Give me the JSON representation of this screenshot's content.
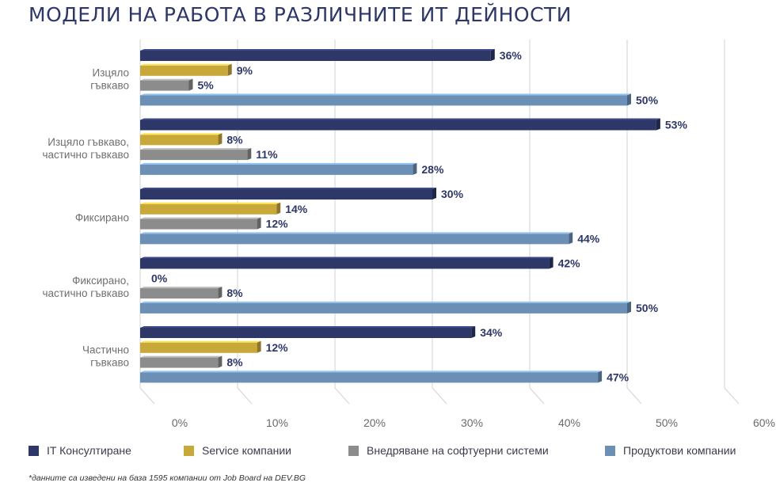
{
  "title": "МОДЕЛИ НА РАБОТА В РАЗЛИЧНИТЕ ИТ ДЕЙНОСТИ",
  "footnote": "*данните са изведени на база 1595 компании от Job Board на DEV.BG",
  "chart_data": {
    "type": "bar",
    "orientation": "horizontal",
    "title": "МОДЕЛИ НА РАБОТА В РАЗЛИЧНИТЕ ИТ ДЕЙНОСТИ",
    "categories": [
      [
        "Изцяло",
        "гъвкаво"
      ],
      [
        "Изцяло гъвкаво,",
        "частично гъвкаво"
      ],
      [
        "Фиксирано"
      ],
      [
        "Фиксирано,",
        "частично гъвкаво"
      ],
      [
        "Частично",
        "гъвкаво"
      ]
    ],
    "series": [
      {
        "name": "IT Консултиране",
        "color": "#2d3768",
        "values": [
          36,
          53,
          30,
          42,
          34
        ]
      },
      {
        "name": "Service компании",
        "color": "#c9a83a",
        "values": [
          9,
          8,
          14,
          0,
          12
        ]
      },
      {
        "name": "Внедряване на софтуерни системи",
        "color": "#8c8c8c",
        "values": [
          5,
          11,
          12,
          8,
          8
        ]
      },
      {
        "name": "Продуктови компании",
        "color": "#6b8fb5",
        "values": [
          50,
          28,
          44,
          50,
          47
        ]
      }
    ],
    "value_suffix": "%",
    "xlim": [
      0,
      60
    ],
    "xticks": [
      "0%",
      "10%",
      "20%",
      "30%",
      "40%",
      "50%",
      "60%"
    ],
    "grid": true,
    "legend": "bottom"
  }
}
